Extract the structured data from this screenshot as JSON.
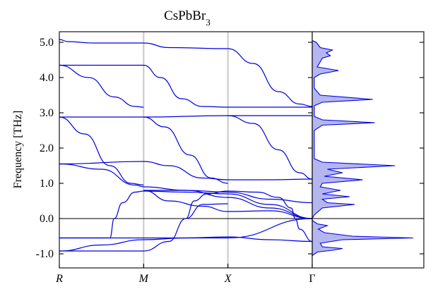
{
  "chart_data": {
    "type": "line",
    "title": "CsPbBr3",
    "title_parts": {
      "base": "CsPbBr",
      "subscript": "3"
    },
    "ylabel": "Frequency [THz]",
    "xlabel": "",
    "ylim": [
      -1.4,
      5.3
    ],
    "yticks": [
      -1.0,
      0.0,
      1.0,
      2.0,
      3.0,
      4.0,
      5.0
    ],
    "ytick_labels": [
      "-1.0",
      "0.0",
      "1.0",
      "2.0",
      "3.0",
      "4.0",
      "5.0"
    ],
    "x_path_points": [
      "R",
      "M",
      "X",
      "Γ"
    ],
    "x_path_italic": [
      true,
      true,
      true,
      false
    ],
    "grid": false,
    "zero_line": true,
    "panels": [
      "band_structure",
      "density_of_states"
    ],
    "bands": [
      {
        "values": [
          [
            0,
            5.08
          ],
          [
            0.1,
            5.02
          ],
          [
            0.4,
            4.98
          ],
          [
            1.0,
            4.98
          ],
          [
            1.3,
            4.85
          ],
          [
            2.0,
            4.82
          ]
        ]
      },
      {
        "values": [
          [
            2.0,
            4.82
          ],
          [
            2.3,
            4.4
          ],
          [
            2.6,
            3.6
          ],
          [
            2.85,
            3.25
          ],
          [
            3.0,
            3.18
          ]
        ]
      },
      {
        "values": [
          [
            0,
            4.35
          ],
          [
            1.0,
            4.35
          ],
          [
            1.2,
            4.0
          ],
          [
            1.45,
            3.4
          ],
          [
            1.7,
            3.18
          ],
          [
            2.0,
            3.16
          ],
          [
            3.0,
            3.16
          ]
        ]
      },
      {
        "values": [
          [
            0,
            4.35
          ],
          [
            0.35,
            4.0
          ],
          [
            0.65,
            3.45
          ],
          [
            0.9,
            3.18
          ],
          [
            1.0,
            3.16
          ]
        ]
      },
      {
        "values": [
          [
            0,
            2.88
          ],
          [
            1.0,
            2.88
          ],
          [
            2.0,
            2.92
          ],
          [
            3.0,
            2.92
          ]
        ]
      },
      {
        "values": [
          [
            0,
            2.88
          ],
          [
            0.3,
            2.4
          ],
          [
            0.6,
            1.5
          ],
          [
            0.85,
            1.0
          ],
          [
            1.0,
            0.95
          ]
        ]
      },
      {
        "values": [
          [
            1.0,
            2.88
          ],
          [
            1.25,
            2.6
          ],
          [
            1.55,
            1.8
          ],
          [
            1.8,
            1.15
          ],
          [
            2.0,
            1.0
          ]
        ]
      },
      {
        "values": [
          [
            2.0,
            2.92
          ],
          [
            2.3,
            2.7
          ],
          [
            2.6,
            1.95
          ],
          [
            2.85,
            1.3
          ],
          [
            3.0,
            1.12
          ]
        ]
      },
      {
        "values": [
          [
            0,
            1.55
          ],
          [
            1.0,
            1.62
          ],
          [
            1.3,
            1.5
          ],
          [
            1.7,
            1.15
          ],
          [
            2.0,
            1.1
          ],
          [
            2.5,
            1.1
          ],
          [
            3.0,
            1.12
          ]
        ]
      },
      {
        "values": [
          [
            0,
            1.55
          ],
          [
            0.5,
            1.4
          ],
          [
            0.9,
            0.95
          ],
          [
            1.0,
            0.9
          ],
          [
            1.5,
            0.8
          ],
          [
            2.0,
            0.75
          ],
          [
            2.5,
            0.55
          ],
          [
            3.0,
            0.45
          ]
        ]
      },
      {
        "values": [
          [
            1.0,
            0.8
          ],
          [
            1.5,
            0.8
          ],
          [
            2.0,
            0.6
          ],
          [
            2.5,
            0.3
          ],
          [
            3.0,
            0.0
          ]
        ]
      },
      {
        "values": [
          [
            1.0,
            0.8
          ],
          [
            1.3,
            0.5
          ],
          [
            1.7,
            0.35
          ],
          [
            2.0,
            0.2
          ],
          [
            2.5,
            0.22
          ],
          [
            3.0,
            0.0
          ]
        ]
      },
      {
        "values": [
          [
            0,
            -0.55
          ],
          [
            0.6,
            -0.55
          ],
          [
            0.65,
            0.0
          ],
          [
            0.75,
            0.45
          ],
          [
            0.9,
            0.75
          ],
          [
            1.0,
            0.78
          ],
          [
            1.5,
            0.75
          ],
          [
            2.0,
            0.7
          ],
          [
            2.5,
            0.4
          ],
          [
            3.0,
            0.0
          ]
        ]
      },
      {
        "values": [
          [
            0,
            -0.92
          ],
          [
            1.0,
            -0.92
          ],
          [
            1.3,
            -0.65
          ],
          [
            1.5,
            0.0
          ],
          [
            1.7,
            0.4
          ],
          [
            2.0,
            0.42
          ]
        ]
      },
      {
        "values": [
          [
            1.5,
            0.0
          ],
          [
            1.6,
            0.5
          ],
          [
            1.75,
            0.7
          ],
          [
            2.0,
            0.78
          ],
          [
            2.35,
            0.75
          ],
          [
            2.6,
            0.6
          ],
          [
            2.75,
            0.3
          ],
          [
            2.8,
            0.0
          ],
          [
            2.85,
            -0.3
          ],
          [
            3.0,
            -0.65
          ]
        ]
      },
      {
        "values": [
          [
            0,
            -0.92
          ],
          [
            0.5,
            -0.75
          ],
          [
            1.0,
            -0.6
          ],
          [
            1.5,
            -0.55
          ],
          [
            2.0,
            -0.52
          ],
          [
            2.5,
            -0.6
          ],
          [
            3.0,
            -0.65
          ]
        ]
      },
      {
        "values": [
          [
            0,
            -0.55
          ],
          [
            1.0,
            -0.55
          ],
          [
            2.0,
            -0.55
          ],
          [
            3.0,
            0.0
          ]
        ]
      }
    ],
    "dos": {
      "values": [
        [
          -1.05,
          0.0
        ],
        [
          -0.95,
          0.05
        ],
        [
          -0.9,
          0.2
        ],
        [
          -0.85,
          0.3
        ],
        [
          -0.8,
          0.1
        ],
        [
          -0.7,
          0.08
        ],
        [
          -0.6,
          0.3
        ],
        [
          -0.55,
          1.0
        ],
        [
          -0.5,
          0.4
        ],
        [
          -0.4,
          0.12
        ],
        [
          -0.3,
          0.06
        ],
        [
          -0.2,
          0.15
        ],
        [
          -0.15,
          0.05
        ],
        [
          -0.05,
          0.0
        ],
        [
          0.0,
          0.0
        ],
        [
          0.1,
          0.02
        ],
        [
          0.3,
          0.1
        ],
        [
          0.4,
          0.42
        ],
        [
          0.45,
          0.15
        ],
        [
          0.55,
          0.1
        ],
        [
          0.62,
          0.37
        ],
        [
          0.7,
          0.1
        ],
        [
          0.8,
          0.28
        ],
        [
          0.9,
          0.08
        ],
        [
          1.0,
          0.1
        ],
        [
          1.1,
          0.5
        ],
        [
          1.2,
          0.12
        ],
        [
          1.3,
          0.3
        ],
        [
          1.4,
          0.15
        ],
        [
          1.5,
          0.82
        ],
        [
          1.6,
          0.1
        ],
        [
          1.7,
          0.02
        ],
        [
          2.5,
          0.02
        ],
        [
          2.65,
          0.1
        ],
        [
          2.72,
          0.62
        ],
        [
          2.8,
          0.1
        ],
        [
          2.9,
          0.02
        ],
        [
          3.2,
          0.02
        ],
        [
          3.3,
          0.1
        ],
        [
          3.38,
          0.6
        ],
        [
          3.5,
          0.08
        ],
        [
          3.7,
          0.02
        ],
        [
          4.0,
          0.02
        ],
        [
          4.1,
          0.08
        ],
        [
          4.2,
          0.26
        ],
        [
          4.3,
          0.05
        ],
        [
          4.45,
          0.08
        ],
        [
          4.55,
          0.1
        ],
        [
          4.62,
          0.18
        ],
        [
          4.7,
          0.14
        ],
        [
          4.78,
          0.2
        ],
        [
          4.85,
          0.08
        ],
        [
          5.0,
          0.04
        ],
        [
          5.05,
          0.0
        ]
      ]
    }
  }
}
